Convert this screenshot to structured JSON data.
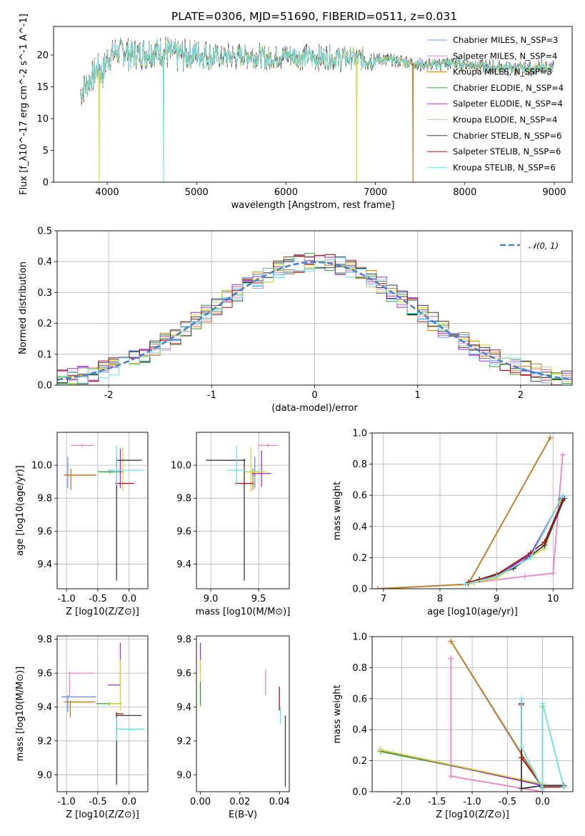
{
  "figure_title": "PLATE=0306, MJD=51690, FIBERID=0511, z=0.031",
  "colors": {
    "Chabrier MILES": "#6495ed",
    "Salpeter MILES": "#e586c8",
    "Kroupa MILES": "#c87c1c",
    "Chabrier ELODIE": "#3c9a3c",
    "Salpeter ELODIE": "#9932cc",
    "Kroupa ELODIE": "#d4d640",
    "Chabrier STELIB": "#3a3a3a",
    "Salpeter STELIB": "#a01818",
    "Kroupa STELIB": "#6ee0e0",
    "normal": "#4a7fd0"
  },
  "chart_data": [
    {
      "id": "spectrum",
      "type": "line",
      "title": "PLATE=0306, MJD=51690, FIBERID=0511, z=0.031",
      "xlabel": "wavelength [Angstrom, rest frame]",
      "ylabel": "Flux [f_λ10^-17 erg cm^-2 s^-1 A^-1]",
      "xlim": [
        3400,
        9200
      ],
      "ylim": [
        0,
        24.5
      ],
      "xticks": [
        "4000",
        "5000",
        "6000",
        "7000",
        "8000",
        "9000"
      ],
      "yticks": [
        "0",
        "5",
        "10",
        "15",
        "20"
      ],
      "grid": false,
      "legend_position": "top-right",
      "legend": [
        "Chabrier MILES, N_SSP=3",
        "Salpeter MILES, N_SSP=4",
        "Kroupa MILES, N_SSP=3",
        "Chabrier ELODIE, N_SSP=4",
        "Salpeter ELODIE, N_SSP=4",
        "Kroupa ELODIE, N_SSP=4",
        "Chabrier STELIB, N_SSP=6",
        "Salpeter STELIB, N_SSP=6",
        "Kroupa STELIB, N_SSP=6"
      ],
      "continuum": {
        "x": [
          3700,
          3800,
          3850,
          3900,
          3950,
          4000,
          4050,
          4100,
          4200,
          4300,
          4400,
          4600,
          4800,
          5000,
          5200,
          5400,
          5600,
          5800,
          6000,
          6200,
          6400,
          6600,
          6800,
          7000,
          7200,
          7400,
          7600,
          7800,
          8000,
          8200,
          8400,
          8600,
          8800,
          9000
        ],
        "y": [
          14,
          16,
          17,
          18,
          17,
          19.5,
          20,
          20.5,
          20.5,
          20,
          20.5,
          20.5,
          20,
          20.3,
          19.8,
          19.7,
          20,
          19.5,
          20,
          19.7,
          19.5,
          19.6,
          19.5,
          19.3,
          19.2,
          18.8,
          18.4,
          18.8,
          18.6,
          18.3,
          18.0,
          17.9,
          17.9,
          18.0
        ]
      },
      "drops": [
        {
          "series": "Kroupa ELODIE",
          "x": 3910
        },
        {
          "series": "Kroupa STELIB",
          "x": 4630
        },
        {
          "series": "Kroupa ELODIE",
          "x": 6790
        },
        {
          "series": "Kroupa MILES",
          "x": 7420
        }
      ]
    },
    {
      "id": "residuals",
      "type": "histogram",
      "xlabel": "(data-model)/error",
      "ylabel": "Normed distribution",
      "xlim": [
        -2.5,
        2.5
      ],
      "ylim": [
        0,
        0.5
      ],
      "xticks": [
        "-2",
        "-1",
        "0",
        "1",
        "2"
      ],
      "yticks": [
        "0.0",
        "0.1",
        "0.2",
        "0.3",
        "0.4",
        "0.5"
      ],
      "grid": true,
      "legend_position": "top-right",
      "reference_curve": "N(0,1)",
      "bin_width": 0.1
    },
    {
      "id": "age_vs_Z",
      "type": "errorbar",
      "xlabel": "Z [log10(Z/Z⊙)]",
      "ylabel": "age [log10(age/yr)]",
      "xlim": [
        -1.15,
        0.3
      ],
      "ylim": [
        9.25,
        10.2
      ],
      "xticks": [
        "-1.0",
        "-0.5",
        "0.0"
      ],
      "yticks": [
        "9.4",
        "9.6",
        "9.8",
        "10.0"
      ],
      "grid": true,
      "points": [
        {
          "series": "Chabrier MILES",
          "x": -0.98,
          "xerr": [
            0.07,
            0.45
          ],
          "y": 9.94,
          "yerr": [
            0.08,
            0.11
          ]
        },
        {
          "series": "Salpeter MILES",
          "x": -0.75,
          "xerr": [
            0.18,
            0.18
          ],
          "y": 10.12,
          "yerr": [
            0.01,
            0.01
          ]
        },
        {
          "series": "Kroupa MILES",
          "x": -0.93,
          "xerr": [
            0.1,
            0.4
          ],
          "y": 9.94,
          "yerr": [
            0.09,
            0.04
          ]
        },
        {
          "series": "Chabrier ELODIE",
          "x": -0.3,
          "xerr": [
            0.2,
            0.2
          ],
          "y": 9.96,
          "yerr": [
            0.01,
            0.01
          ]
        },
        {
          "series": "Salpeter ELODIE",
          "x": -0.14,
          "xerr": [
            0.01,
            0.01
          ],
          "y": 9.96,
          "yerr": [
            0.1,
            0.14
          ]
        },
        {
          "series": "Kroupa ELODIE",
          "x": -0.1,
          "xerr": [
            0.01,
            0.01
          ],
          "y": 9.96,
          "yerr": [
            0.12,
            0.15
          ]
        },
        {
          "series": "Chabrier STELIB",
          "x": -0.2,
          "xerr": [
            0.01,
            0.4
          ],
          "y": 10.03,
          "yerr": [
            0.73,
            0.01
          ]
        },
        {
          "series": "Salpeter STELIB",
          "x": -0.2,
          "xerr": [
            0.02,
            0.28
          ],
          "y": 9.89,
          "yerr": [
            0.01,
            0.01
          ]
        },
        {
          "series": "Kroupa STELIB",
          "x": -0.2,
          "xerr": [
            0.15,
            0.43
          ],
          "y": 9.97,
          "yerr": [
            0.09,
            0.15
          ]
        }
      ]
    },
    {
      "id": "age_vs_mass",
      "type": "errorbar",
      "xlabel": "mass [log10(M/M⊙)]",
      "ylabel": "",
      "xlim": [
        8.85,
        9.82
      ],
      "ylim": [
        9.25,
        10.2
      ],
      "xticks": [
        "9.0",
        "9.5"
      ],
      "yticks": [
        "9.4",
        "9.6",
        "9.8",
        "10.0"
      ],
      "grid": true,
      "points": [
        {
          "series": "Chabrier MILES",
          "x": 9.46,
          "xerr": [
            0.01,
            0.01
          ],
          "y": 9.94,
          "yerr": [
            0.08,
            0.11
          ]
        },
        {
          "series": "Salpeter MILES",
          "x": 9.6,
          "xerr": [
            0.1,
            0.1
          ],
          "y": 10.12,
          "yerr": [
            0.01,
            0.01
          ]
        },
        {
          "series": "Kroupa MILES",
          "x": 9.44,
          "xerr": [
            0.01,
            0.01
          ],
          "y": 9.94,
          "yerr": [
            0.09,
            0.04
          ]
        },
        {
          "series": "Chabrier ELODIE",
          "x": 9.42,
          "xerr": [
            0.01,
            0.1
          ],
          "y": 9.96,
          "yerr": [
            0.01,
            0.01
          ]
        },
        {
          "series": "Salpeter ELODIE",
          "x": 9.53,
          "xerr": [
            0.1,
            0.1
          ],
          "y": 9.95,
          "yerr": [
            0.08,
            0.14
          ]
        },
        {
          "series": "Kroupa ELODIE",
          "x": 9.42,
          "xerr": [
            0.06,
            0.15
          ],
          "y": 9.96,
          "yerr": [
            0.12,
            0.15
          ]
        },
        {
          "series": "Chabrier STELIB",
          "x": 9.35,
          "xerr": [
            0.4,
            0.01
          ],
          "y": 10.03,
          "yerr": [
            0.73,
            0.01
          ]
        },
        {
          "series": "Salpeter STELIB",
          "x": 9.35,
          "xerr": [
            0.1,
            0.1
          ],
          "y": 9.89,
          "yerr": [
            0.01,
            0.01
          ]
        },
        {
          "series": "Kroupa STELIB",
          "x": 9.27,
          "xerr": [
            0.1,
            0.1
          ],
          "y": 9.97,
          "yerr": [
            0.09,
            0.15
          ]
        }
      ]
    },
    {
      "id": "weight_vs_age",
      "type": "line",
      "xlabel": "age [log10(age/yr)]",
      "ylabel": "mass weight",
      "xlim": [
        6.8,
        10.35
      ],
      "ylim": [
        0,
        1.0
      ],
      "xticks": [
        "7",
        "8",
        "9",
        "10"
      ],
      "yticks": [
        "0.0",
        "0.2",
        "0.4",
        "0.6",
        "0.8",
        "1.0"
      ],
      "grid": true,
      "series": [
        {
          "name": "Chabrier MILES",
          "x": [
            6.9,
            8.5,
            9.95
          ],
          "y": [
            0.0,
            0.03,
            0.97
          ]
        },
        {
          "name": "Kroupa MILES",
          "x": [
            6.9,
            8.5,
            9.95
          ],
          "y": [
            0.0,
            0.03,
            0.97
          ]
        },
        {
          "name": "Salpeter MILES",
          "x": [
            8.6,
            9.5,
            10.0,
            10.17
          ],
          "y": [
            0.04,
            0.08,
            0.1,
            0.86
          ]
        },
        {
          "name": "Chabrier ELODIE",
          "x": [
            8.5,
            9.0,
            9.6,
            10.13
          ],
          "y": [
            0.04,
            0.08,
            0.2,
            0.57
          ]
        },
        {
          "name": "Salpeter ELODIE",
          "x": [
            8.5,
            9.0,
            9.6,
            10.15
          ],
          "y": [
            0.04,
            0.08,
            0.22,
            0.58
          ]
        },
        {
          "name": "Kroupa ELODIE",
          "x": [
            8.5,
            9.0,
            9.85,
            10.15
          ],
          "y": [
            0.03,
            0.07,
            0.26,
            0.56
          ]
        },
        {
          "name": "Chabrier STELIB",
          "x": [
            8.5,
            8.7,
            9.3,
            9.85,
            10.2
          ],
          "y": [
            0.04,
            0.06,
            0.13,
            0.28,
            0.58
          ]
        },
        {
          "name": "Salpeter STELIB",
          "x": [
            8.5,
            8.7,
            9.0,
            9.6,
            9.85,
            10.17
          ],
          "y": [
            0.04,
            0.06,
            0.09,
            0.23,
            0.3,
            0.57
          ]
        },
        {
          "name": "Kroupa STELIB",
          "x": [
            8.45,
            9.0,
            9.6,
            10.17
          ],
          "y": [
            0.03,
            0.08,
            0.2,
            0.6
          ]
        }
      ]
    },
    {
      "id": "mass_vs_Z",
      "type": "errorbar",
      "xlabel": "Z [log10(Z/Z⊙)]",
      "ylabel": "mass [log10(M/M⊙)]",
      "xlim": [
        -1.15,
        0.3
      ],
      "ylim": [
        8.9,
        9.82
      ],
      "xticks": [
        "-1.0",
        "-0.5",
        "0.0"
      ],
      "yticks": [
        "9.0",
        "9.2",
        "9.4",
        "9.6",
        "9.8"
      ],
      "grid": true,
      "points": [
        {
          "series": "Chabrier MILES",
          "x": -0.98,
          "xerr": [
            0.1,
            0.45
          ],
          "y": 9.46,
          "yerr": [
            0.09,
            0.01
          ]
        },
        {
          "series": "Salpeter MILES",
          "x": -0.95,
          "xerr": [
            0.02,
            0.4
          ],
          "y": 9.6,
          "yerr": [
            0.14,
            0.01
          ]
        },
        {
          "series": "Kroupa MILES",
          "x": -0.94,
          "xerr": [
            0.1,
            0.4
          ],
          "y": 9.43,
          "yerr": [
            0.09,
            0.01
          ]
        },
        {
          "series": "Chabrier ELODIE",
          "x": -0.32,
          "xerr": [
            0.2,
            0.2
          ],
          "y": 9.42,
          "yerr": [
            0.01,
            0.01
          ]
        },
        {
          "series": "Salpeter ELODIE",
          "x": -0.14,
          "xerr": [
            0.2,
            0.01
          ],
          "y": 9.53,
          "yerr": [
            0.01,
            0.25
          ]
        },
        {
          "series": "Kroupa ELODIE",
          "x": -0.14,
          "xerr": [
            0.2,
            0.01
          ],
          "y": 9.42,
          "yerr": [
            0.04,
            0.26
          ]
        },
        {
          "series": "Chabrier STELIB",
          "x": -0.2,
          "xerr": [
            0.01,
            0.4
          ],
          "y": 9.35,
          "yerr": [
            0.41,
            0.01
          ]
        },
        {
          "series": "Salpeter STELIB",
          "x": -0.2,
          "xerr": [
            0.01,
            0.11
          ],
          "y": 9.36,
          "yerr": [
            0.01,
            0.01
          ]
        },
        {
          "series": "Kroupa STELIB",
          "x": -0.2,
          "xerr": [
            0.01,
            0.45
          ],
          "y": 9.27,
          "yerr": [
            0.07,
            0.07
          ]
        }
      ]
    },
    {
      "id": "mass_vs_ebv",
      "type": "errorbar",
      "xlabel": "E(B-V)",
      "ylabel": "",
      "xlim": [
        -0.002,
        0.045
      ],
      "ylim": [
        8.9,
        9.82
      ],
      "xticks": [
        "0.00",
        "0.02",
        "0.04"
      ],
      "yticks": [
        "9.0",
        "9.2",
        "9.4",
        "9.6",
        "9.8"
      ],
      "grid": false,
      "points": [
        {
          "series": "Salpeter ELODIE",
          "x": 0.0,
          "xerr": [
            0,
            0
          ],
          "y": 9.62,
          "yerr": [
            0.02,
            0.16
          ]
        },
        {
          "series": "Kroupa ELODIE",
          "x": 0.0,
          "xerr": [
            0,
            0
          ],
          "y": 9.55,
          "yerr": [
            0.15,
            0.13
          ]
        },
        {
          "series": "Chabrier ELODIE",
          "x": 0.0,
          "xerr": [
            0,
            0
          ],
          "y": 9.53,
          "yerr": [
            0.12,
            0.02
          ]
        },
        {
          "series": "Salpeter MILES",
          "x": 0.033,
          "xerr": [
            0,
            0
          ],
          "y": 9.55,
          "yerr": [
            0.08,
            0.07
          ]
        },
        {
          "series": "Salpeter STELIB",
          "x": 0.04,
          "xerr": [
            0,
            0
          ],
          "y": 9.46,
          "yerr": [
            0.08,
            0.06
          ]
        },
        {
          "series": "Kroupa STELIB",
          "x": 0.0405,
          "xerr": [
            0,
            0
          ],
          "y": 9.35,
          "yerr": [
            0.05,
            0.05
          ]
        },
        {
          "series": "Chabrier STELIB",
          "x": 0.043,
          "xerr": [
            0,
            0
          ],
          "y": 9.15,
          "yerr": [
            0.22,
            0.2
          ]
        }
      ]
    },
    {
      "id": "weight_vs_Z",
      "type": "line",
      "xlabel": "Z [log10(Z/Z⊙)]",
      "ylabel": "mass weight",
      "xlim": [
        -2.42,
        0.43
      ],
      "ylim": [
        0,
        1.0
      ],
      "xticks": [
        "-2.0",
        "-1.5",
        "-1.0",
        "-0.5",
        "0.0"
      ],
      "yticks": [
        "0.0",
        "0.2",
        "0.4",
        "0.6",
        "0.8",
        "1.0"
      ],
      "grid": true,
      "series": [
        {
          "name": "Chabrier MILES",
          "x": [
            -1.3,
            0.0
          ],
          "y": [
            0.97,
            0.02
          ]
        },
        {
          "name": "Kroupa MILES",
          "x": [
            -1.3,
            0.0
          ],
          "y": [
            0.97,
            0.03
          ]
        },
        {
          "name": "Salpeter MILES",
          "x": [
            -1.3,
            -1.3,
            0.0,
            0.0
          ],
          "y": [
            0.86,
            0.1,
            0.0,
            0.04
          ]
        },
        {
          "name": "Chabrier ELODIE",
          "x": [
            -2.3,
            0.0,
            0.0
          ],
          "y": [
            0.26,
            0.05,
            0.55
          ]
        },
        {
          "name": "Salpeter ELODIE",
          "x": [
            -2.3,
            0.0,
            0.0
          ],
          "y": [
            0.27,
            0.04,
            0.55
          ]
        },
        {
          "name": "Kroupa ELODIE",
          "x": [
            -2.3,
            0.0,
            0.0
          ],
          "y": [
            0.27,
            0.05,
            0.55
          ]
        },
        {
          "name": "Chabrier STELIB",
          "x": [
            -0.3,
            -0.3,
            0.0,
            0.3
          ],
          "y": [
            0.57,
            0.02,
            0.04,
            0.04
          ]
        },
        {
          "name": "Salpeter STELIB",
          "x": [
            -0.3,
            -0.3,
            0.0,
            0.3
          ],
          "y": [
            0.56,
            0.22,
            0.03,
            0.03
          ]
        },
        {
          "name": "Kroupa STELIB",
          "x": [
            -0.3,
            -0.3,
            0.0,
            0.0,
            0.3
          ],
          "y": [
            0.6,
            0.29,
            0.02,
            0.57,
            0.03
          ]
        }
      ]
    }
  ]
}
